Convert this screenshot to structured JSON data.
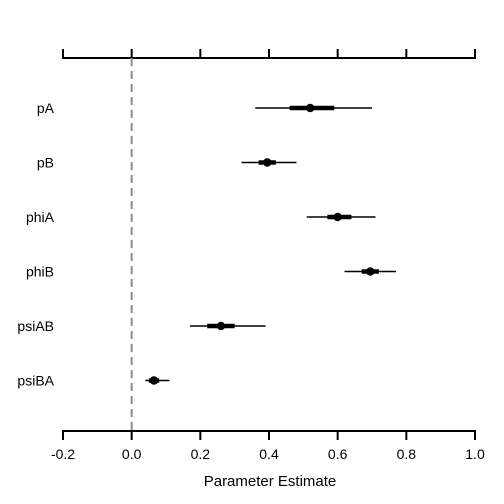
{
  "chart_data": {
    "type": "forest",
    "title": "",
    "xlabel": "Parameter Estimate",
    "ylabel": "",
    "xlim": [
      -0.2,
      1.0
    ],
    "xticks": [
      -0.2,
      0.0,
      0.2,
      0.4,
      0.6,
      0.8,
      1.0
    ],
    "xtick_labels": [
      "-0.2",
      "0.0",
      "0.2",
      "0.4",
      "0.6",
      "0.8",
      "1.0"
    ],
    "reference_line": {
      "x": 0.0,
      "style": "dashed",
      "color": "#8c8c8c"
    },
    "parameters": [
      {
        "name": "pA",
        "estimate": 0.52,
        "inner": [
          0.46,
          0.59
        ],
        "outer": [
          0.36,
          0.7
        ]
      },
      {
        "name": "pB",
        "estimate": 0.395,
        "inner": [
          0.37,
          0.42
        ],
        "outer": [
          0.32,
          0.48
        ]
      },
      {
        "name": "phiA",
        "estimate": 0.6,
        "inner": [
          0.57,
          0.64
        ],
        "outer": [
          0.51,
          0.71
        ]
      },
      {
        "name": "phiB",
        "estimate": 0.695,
        "inner": [
          0.67,
          0.72
        ],
        "outer": [
          0.62,
          0.77
        ]
      },
      {
        "name": "psiAB",
        "estimate": 0.26,
        "inner": [
          0.22,
          0.3
        ],
        "outer": [
          0.17,
          0.39
        ]
      },
      {
        "name": "psiBA",
        "estimate": 0.065,
        "inner": [
          0.05,
          0.08
        ],
        "outer": [
          0.04,
          0.11
        ]
      }
    ],
    "colors": {
      "point": "#000000",
      "axis": "#000000"
    }
  }
}
